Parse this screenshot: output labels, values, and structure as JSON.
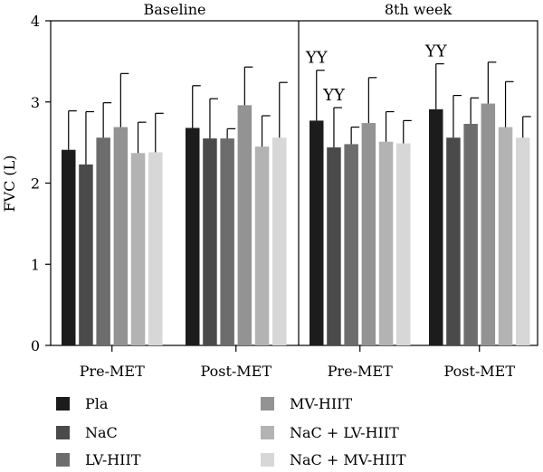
{
  "chart_data": {
    "type": "bar",
    "ylabel": "FVC (L)",
    "ylim": [
      0,
      4
    ],
    "yticks": [
      "0",
      "1",
      "2",
      "3",
      "4"
    ],
    "panels": [
      {
        "title": "Baseline",
        "groups": [
          {
            "label": "Pre-MET",
            "means": [
              2.41,
              2.23,
              2.56,
              2.69,
              2.37,
              2.38
            ],
            "err_upper": [
              2.89,
              2.88,
              2.99,
              3.35,
              2.75,
              2.86
            ]
          },
          {
            "label": "Post-MET",
            "means": [
              2.68,
              2.55,
              2.55,
              2.96,
              2.45,
              2.56
            ],
            "err_upper": [
              3.2,
              3.04,
              2.67,
              3.43,
              2.83,
              3.24
            ]
          }
        ]
      },
      {
        "title": "8th week",
        "groups": [
          {
            "label": "Pre-MET",
            "means": [
              2.77,
              2.44,
              2.48,
              2.74,
              2.51,
              2.49
            ],
            "err_upper": [
              3.39,
              2.93,
              2.69,
              3.3,
              2.88,
              2.77
            ],
            "annotations": [
              {
                "series": 0,
                "text": "YY"
              },
              {
                "series": 1,
                "text": "YY"
              }
            ]
          },
          {
            "label": "Post-MET",
            "means": [
              2.91,
              2.56,
              2.73,
              2.98,
              2.69,
              2.56
            ],
            "err_upper": [
              3.47,
              3.08,
              3.05,
              3.49,
              3.25,
              2.82
            ],
            "annotations": [
              {
                "series": 0,
                "text": "YY"
              }
            ]
          }
        ]
      }
    ],
    "series": [
      {
        "name": "Pla",
        "color": "#1c1c1c"
      },
      {
        "name": "NaC",
        "color": "#4a4a4a"
      },
      {
        "name": "LV-HIIT",
        "color": "#6d6d6d"
      },
      {
        "name": "MV-HIIT",
        "color": "#939393"
      },
      {
        "name": "NaC + LV-HIIT",
        "color": "#b3b3b3"
      },
      {
        "name": "NaC + MV-HIIT",
        "color": "#d7d7d7"
      }
    ],
    "legend_position": "bottom"
  }
}
